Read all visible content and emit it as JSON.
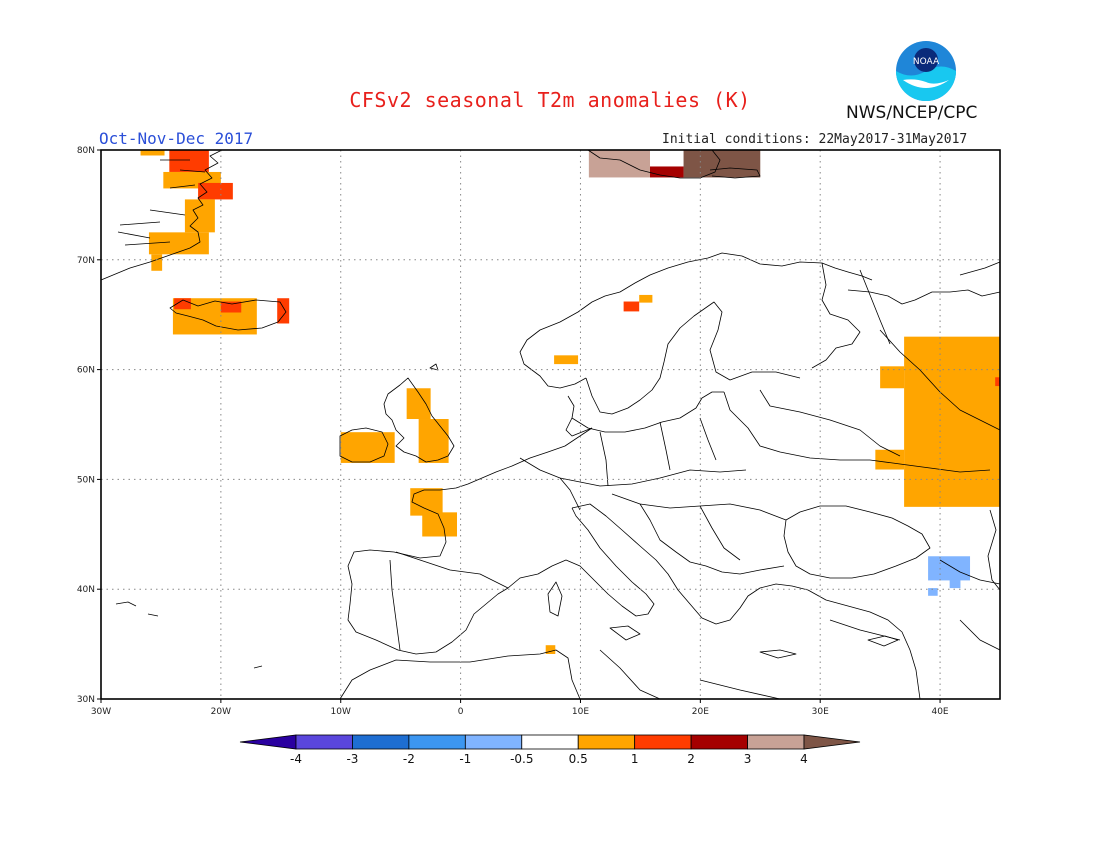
{
  "header": {
    "title": "CFSv2 seasonal T2m anomalies (K)",
    "period": "Oct-Nov-Dec 2017",
    "init_conditions": "Initial conditions: 22May2017-31May2017",
    "agency": "NWS/NCEP/CPC",
    "logo_text": "NOAA"
  },
  "map": {
    "lon_range": [
      -30,
      45
    ],
    "lat_range": [
      30,
      80
    ],
    "gridlines": "dotted",
    "lat_labels": [
      "80N",
      "70N",
      "60N",
      "50N",
      "40N",
      "30N"
    ],
    "lon_labels": [
      "30W",
      "20W",
      "10W",
      "0",
      "10E",
      "20E",
      "30E",
      "40E"
    ],
    "anomaly_cells": [
      {
        "lon": [
          -26.7,
          -24.7
        ],
        "lat": [
          79.5,
          80
        ],
        "color": "#ffa500"
      },
      {
        "lon": [
          -24.3,
          -21.0
        ],
        "lat": [
          78,
          80
        ],
        "color": "#ff3c00"
      },
      {
        "lon": [
          -24.8,
          -20.0
        ],
        "lat": [
          76.5,
          78
        ],
        "color": "#ffa500"
      },
      {
        "lon": [
          -21.9,
          -19.0
        ],
        "lat": [
          75.5,
          77
        ],
        "color": "#ff3c00"
      },
      {
        "lon": [
          -23.0,
          -20.5
        ],
        "lat": [
          72.5,
          75.5
        ],
        "color": "#ffa500"
      },
      {
        "lon": [
          -26.0,
          -21.0
        ],
        "lat": [
          70.5,
          72.5
        ],
        "color": "#ffa500"
      },
      {
        "lon": [
          -25.8,
          -24.9
        ],
        "lat": [
          69,
          70.5
        ],
        "color": "#ffa500"
      },
      {
        "lon": [
          -24.0,
          -17.0
        ],
        "lat": [
          63.2,
          66.5
        ],
        "color": "#ffa500"
      },
      {
        "lon": [
          -23.9,
          -22.5
        ],
        "lat": [
          65.5,
          66.5
        ],
        "color": "#ff3c00"
      },
      {
        "lon": [
          -20.0,
          -18.3
        ],
        "lat": [
          65.2,
          66.2
        ],
        "color": "#ff3c00"
      },
      {
        "lon": [
          -15.3,
          -14.3
        ],
        "lat": [
          64.2,
          66.5
        ],
        "color": "#ff3c00"
      },
      {
        "lon": [
          15.8,
          18.6
        ],
        "lat": [
          77.5,
          78.5
        ],
        "color": "#a50000"
      },
      {
        "lon": [
          10.7,
          15.8
        ],
        "lat": [
          77.5,
          80
        ],
        "color": "#c8a296"
      },
      {
        "lon": [
          18.6,
          25.0
        ],
        "lat": [
          77.5,
          80
        ],
        "color": "#7e5546"
      },
      {
        "lon": [
          13.6,
          14.9
        ],
        "lat": [
          65.3,
          66.2
        ],
        "color": "#ff3c00"
      },
      {
        "lon": [
          14.9,
          16.0
        ],
        "lat": [
          66.1,
          66.8
        ],
        "color": "#ffa500"
      },
      {
        "lon": [
          7.8,
          9.8
        ],
        "lat": [
          60.5,
          61.3
        ],
        "color": "#ffa500"
      },
      {
        "lon": [
          -4.5,
          -2.5
        ],
        "lat": [
          55.5,
          58.3
        ],
        "color": "#ffa500"
      },
      {
        "lon": [
          -3.5,
          -1.0
        ],
        "lat": [
          51.5,
          55.5
        ],
        "color": "#ffa500"
      },
      {
        "lon": [
          -10.0,
          -5.5
        ],
        "lat": [
          51.5,
          54.3
        ],
        "color": "#ffa500"
      },
      {
        "lon": [
          -4.2,
          -1.5
        ],
        "lat": [
          46.7,
          49.2
        ],
        "color": "#ffa500"
      },
      {
        "lon": [
          -3.2,
          -0.3
        ],
        "lat": [
          44.8,
          47.0
        ],
        "color": "#ffa500"
      },
      {
        "lon": [
          7.1,
          7.9
        ],
        "lat": [
          34.1,
          34.9
        ],
        "color": "#ffa500"
      },
      {
        "lon": [
          37.0,
          45.0
        ],
        "lat": [
          47.5,
          63.0
        ],
        "color": "#ffa500"
      },
      {
        "lon": [
          35.0,
          37.0
        ],
        "lat": [
          58.3,
          60.3
        ],
        "color": "#ffa500"
      },
      {
        "lon": [
          34.6,
          37.0
        ],
        "lat": [
          50.9,
          52.7
        ],
        "color": "#ffa500"
      },
      {
        "lon": [
          44.6,
          45.0
        ],
        "lat": [
          58.5,
          59.3
        ],
        "color": "#ff3c00"
      },
      {
        "lon": [
          39.0,
          42.5
        ],
        "lat": [
          40.8,
          43.0
        ],
        "color": "#80b4ff"
      },
      {
        "lon": [
          39.0,
          39.8
        ],
        "lat": [
          39.4,
          40.1
        ],
        "color": "#80b4ff"
      },
      {
        "lon": [
          40.8,
          41.7
        ],
        "lat": [
          40.1,
          40.9
        ],
        "color": "#80b4ff"
      }
    ]
  },
  "colorbar": {
    "colors": [
      "#2a00a0",
      "#5a46dc",
      "#1e6ed2",
      "#3c96f0",
      "#80b4ff",
      "#ffffff",
      "#ffa500",
      "#ff3c00",
      "#a50000",
      "#c8a296",
      "#7e5546"
    ],
    "labels": [
      "-4",
      "-3",
      "-2",
      "-1",
      "-0.5",
      "0.5",
      "1",
      "2",
      "3",
      "4"
    ]
  }
}
